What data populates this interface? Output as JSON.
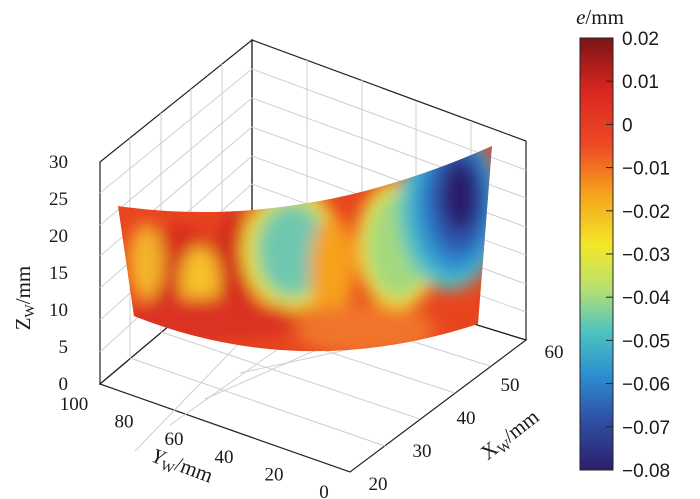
{
  "chart_data": {
    "type": "surface3d",
    "title": "",
    "x_label": {
      "symbol": "X",
      "subscript": "W",
      "unit": "/mm"
    },
    "y_label": {
      "symbol": "Y",
      "subscript": "W",
      "unit": "/mm"
    },
    "z_label": {
      "symbol": "Z",
      "subscript": "W",
      "unit": "/mm"
    },
    "x_ticks": [
      "20",
      "30",
      "40",
      "50",
      "60"
    ],
    "y_ticks": [
      "100",
      "80",
      "60",
      "40",
      "20",
      "0"
    ],
    "z_ticks": [
      "0",
      "5",
      "10",
      "15",
      "20",
      "25",
      "30"
    ],
    "xlim": [
      20,
      60
    ],
    "ylim": [
      0,
      100
    ],
    "zlim": [
      0,
      30
    ],
    "surface": {
      "description_points": [
        {
          "y": 90,
          "z_bottom": 8,
          "z_top": 22
        },
        {
          "y": 0,
          "z_bottom": 8,
          "z_top": 29
        }
      ]
    },
    "colorbar": {
      "title": "e/mm",
      "title_symbol": "e",
      "title_unit": "/mm",
      "ticks": [
        "0.02",
        "0.01",
        "0",
        "−0.01",
        "−0.02",
        "−0.03",
        "−0.04",
        "−0.05",
        "−0.06",
        "−0.07",
        "−0.08"
      ],
      "range": [
        -0.08,
        0.02
      ],
      "colormap": "jet"
    },
    "grid": true
  }
}
